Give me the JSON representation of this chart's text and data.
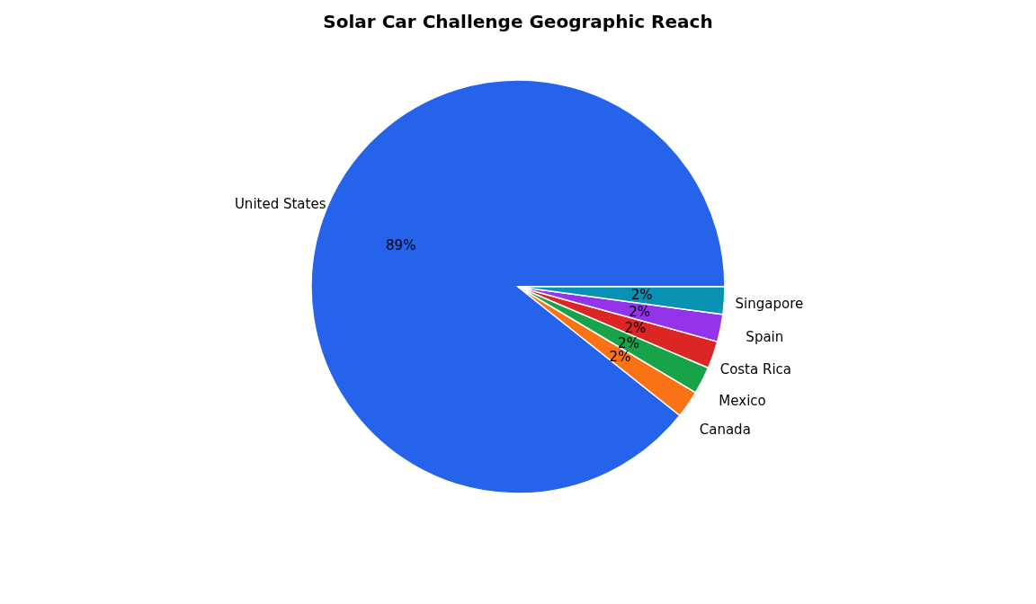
{
  "chart_data": {
    "type": "pie",
    "title": "Solar Car Challenge Geographic Reach",
    "categories": [
      "United States",
      "Canada",
      "Mexico",
      "Costa Rica",
      "Spain",
      "Singapore"
    ],
    "values": [
      89.3,
      2.14,
      2.14,
      2.14,
      2.14,
      2.14
    ],
    "value_labels": [
      "89%",
      "2%",
      "2%",
      "2%",
      "2%",
      "2%"
    ],
    "colors": [
      "#2563eb",
      "#f97316",
      "#16a34a",
      "#dc2626",
      "#9333ea",
      "#0891b2"
    ],
    "legend": false
  }
}
